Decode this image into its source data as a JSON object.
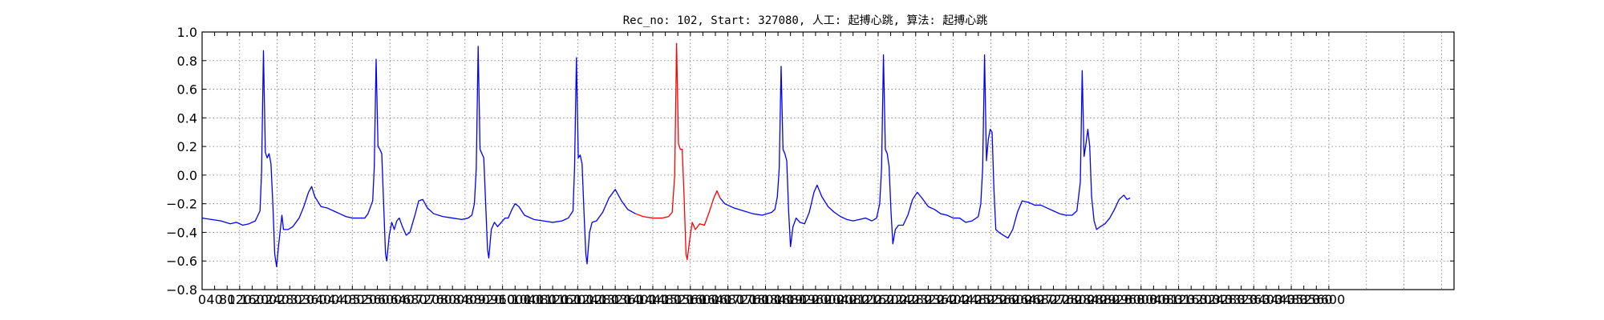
{
  "chart_data": {
    "type": "line",
    "title": "Rec_no: 102, Start: 327080, 人工: 起搏心跳, 算法: 起搏心跳",
    "xlabel": "",
    "ylabel": "",
    "xlim": [
      0,
      4000
    ],
    "ylim": [
      -0.8,
      1.0
    ],
    "grid": true,
    "yticks": [
      1.0,
      0.8,
      0.6,
      0.4,
      0.2,
      0.0,
      -0.2,
      -0.4,
      -0.6,
      -0.8
    ],
    "ytick_labels": [
      "1.0",
      "0.8",
      "0.6",
      "0.4",
      "0.2",
      "0.0",
      "−0.2",
      "−0.4",
      "−0.6",
      "−0.8"
    ],
    "xticks": [
      0,
      40,
      80,
      120,
      160,
      200,
      240,
      280,
      320,
      360,
      400,
      440,
      480,
      520,
      560,
      600,
      640,
      680,
      720,
      760,
      800,
      840,
      880,
      920,
      960,
      1000,
      1040,
      1080,
      1120,
      1160,
      1200,
      1240,
      1280,
      1320,
      1360,
      1400,
      1440,
      1480,
      1520,
      1560,
      1600,
      1640,
      1680,
      1720,
      1760,
      1800,
      1840,
      1880,
      1920,
      1960,
      2000,
      2040,
      2080,
      2120,
      2160,
      2200,
      2240,
      2280,
      2320,
      2360,
      2400,
      2440,
      2480,
      2520,
      2560,
      2600,
      2640,
      2680,
      2720,
      2760,
      2800,
      2840,
      2880,
      2920,
      2960,
      3000,
      3040,
      3080,
      3120,
      3160,
      3200,
      3240,
      3280,
      3320,
      3360,
      3400,
      3440,
      3480,
      3520,
      3560,
      3600
    ],
    "xgrid": [
      0,
      120,
      240,
      360,
      480,
      600,
      720,
      840,
      960,
      1080,
      1200,
      1320,
      1440,
      1560,
      1680,
      1800,
      1920,
      2040,
      2160,
      2280,
      2400,
      2520,
      2640,
      2760,
      2880,
      3000,
      3120,
      3240,
      3360,
      3480,
      3600,
      3720,
      3840,
      3960
    ],
    "series": [
      {
        "color": "#0000ff",
        "points": [
          [
            0,
            -0.3
          ],
          [
            30,
            -0.31
          ],
          [
            60,
            -0.32
          ],
          [
            90,
            -0.34
          ],
          [
            110,
            -0.33
          ],
          [
            130,
            -0.35
          ],
          [
            150,
            -0.34
          ],
          [
            170,
            -0.32
          ],
          [
            185,
            -0.25
          ],
          [
            190,
            0.02
          ],
          [
            196,
            0.87
          ],
          [
            202,
            0.16
          ],
          [
            208,
            0.12
          ],
          [
            214,
            0.15
          ],
          [
            220,
            0.08
          ],
          [
            226,
            -0.2
          ],
          [
            232,
            -0.55
          ],
          [
            238,
            -0.64
          ],
          [
            244,
            -0.5
          ],
          [
            250,
            -0.38
          ],
          [
            255,
            -0.28
          ],
          [
            260,
            -0.38
          ],
          [
            275,
            -0.38
          ],
          [
            290,
            -0.36
          ],
          [
            310,
            -0.3
          ],
          [
            325,
            -0.22
          ],
          [
            340,
            -0.12
          ],
          [
            350,
            -0.08
          ],
          [
            360,
            -0.15
          ],
          [
            380,
            -0.22
          ],
          [
            400,
            -0.23
          ],
          [
            420,
            -0.25
          ],
          [
            440,
            -0.27
          ],
          [
            460,
            -0.29
          ],
          [
            480,
            -0.3
          ],
          [
            500,
            -0.3
          ],
          [
            520,
            -0.3
          ],
          [
            530,
            -0.27
          ],
          [
            545,
            -0.18
          ],
          [
            550,
            0.05
          ],
          [
            556,
            0.81
          ],
          [
            562,
            0.2
          ],
          [
            568,
            0.18
          ],
          [
            574,
            0.15
          ],
          [
            580,
            -0.2
          ],
          [
            586,
            -0.55
          ],
          [
            590,
            -0.6
          ],
          [
            598,
            -0.42
          ],
          [
            606,
            -0.33
          ],
          [
            614,
            -0.38
          ],
          [
            622,
            -0.32
          ],
          [
            630,
            -0.3
          ],
          [
            640,
            -0.36
          ],
          [
            652,
            -0.42
          ],
          [
            664,
            -0.4
          ],
          [
            680,
            -0.28
          ],
          [
            692,
            -0.18
          ],
          [
            705,
            -0.17
          ],
          [
            720,
            -0.23
          ],
          [
            740,
            -0.27
          ],
          [
            770,
            -0.29
          ],
          [
            800,
            -0.3
          ],
          [
            830,
            -0.31
          ],
          [
            850,
            -0.3
          ],
          [
            862,
            -0.28
          ],
          [
            870,
            -0.2
          ],
          [
            876,
            0.05
          ],
          [
            882,
            0.9
          ],
          [
            888,
            0.18
          ],
          [
            894,
            0.15
          ],
          [
            900,
            0.12
          ],
          [
            906,
            -0.2
          ],
          [
            912,
            -0.52
          ],
          [
            916,
            -0.58
          ],
          [
            924,
            -0.38
          ],
          [
            934,
            -0.33
          ],
          [
            944,
            -0.36
          ],
          [
            956,
            -0.33
          ],
          [
            968,
            -0.3
          ],
          [
            978,
            -0.3
          ],
          [
            990,
            -0.24
          ],
          [
            1000,
            -0.2
          ],
          [
            1012,
            -0.22
          ],
          [
            1030,
            -0.28
          ],
          [
            1060,
            -0.31
          ],
          [
            1090,
            -0.32
          ],
          [
            1120,
            -0.33
          ],
          [
            1150,
            -0.32
          ],
          [
            1170,
            -0.3
          ],
          [
            1185,
            -0.25
          ],
          [
            1190,
            0.05
          ],
          [
            1196,
            0.82
          ],
          [
            1202,
            0.12
          ],
          [
            1208,
            0.14
          ],
          [
            1214,
            0.08
          ],
          [
            1220,
            -0.25
          ],
          [
            1226,
            -0.55
          ],
          [
            1230,
            -0.62
          ],
          [
            1238,
            -0.4
          ],
          [
            1246,
            -0.33
          ],
          [
            1260,
            -0.32
          ],
          [
            1280,
            -0.26
          ],
          [
            1300,
            -0.16
          ],
          [
            1320,
            -0.1
          ],
          [
            1340,
            -0.18
          ],
          [
            1360,
            -0.24
          ],
          [
            1385,
            -0.27
          ]
        ]
      },
      {
        "color": "#ff0000",
        "points": [
          [
            1385,
            -0.27
          ],
          [
            1410,
            -0.29
          ],
          [
            1440,
            -0.3
          ],
          [
            1470,
            -0.3
          ],
          [
            1490,
            -0.29
          ],
          [
            1502,
            -0.26
          ],
          [
            1510,
            0.0
          ],
          [
            1516,
            0.92
          ],
          [
            1522,
            0.22
          ],
          [
            1528,
            0.18
          ],
          [
            1534,
            0.18
          ],
          [
            1540,
            -0.15
          ],
          [
            1546,
            -0.55
          ],
          [
            1550,
            -0.59
          ],
          [
            1558,
            -0.45
          ],
          [
            1566,
            -0.33
          ],
          [
            1576,
            -0.38
          ],
          [
            1590,
            -0.34
          ],
          [
            1605,
            -0.35
          ],
          [
            1620,
            -0.26
          ],
          [
            1635,
            -0.16
          ],
          [
            1645,
            -0.11
          ],
          [
            1655,
            -0.16
          ]
        ]
      },
      {
        "color": "#0000ff",
        "points": [
          [
            1655,
            -0.16
          ],
          [
            1670,
            -0.2
          ],
          [
            1700,
            -0.23
          ],
          [
            1730,
            -0.25
          ],
          [
            1760,
            -0.27
          ],
          [
            1790,
            -0.28
          ],
          [
            1820,
            -0.26
          ],
          [
            1830,
            -0.24
          ],
          [
            1838,
            -0.15
          ],
          [
            1844,
            0.05
          ],
          [
            1850,
            0.76
          ],
          [
            1856,
            0.18
          ],
          [
            1862,
            0.15
          ],
          [
            1868,
            0.1
          ],
          [
            1874,
            -0.25
          ],
          [
            1880,
            -0.5
          ],
          [
            1888,
            -0.36
          ],
          [
            1898,
            -0.3
          ],
          [
            1910,
            -0.33
          ],
          [
            1925,
            -0.34
          ],
          [
            1940,
            -0.26
          ],
          [
            1955,
            -0.12
          ],
          [
            1965,
            -0.07
          ],
          [
            1980,
            -0.15
          ],
          [
            2000,
            -0.22
          ],
          [
            2020,
            -0.26
          ],
          [
            2040,
            -0.29
          ],
          [
            2060,
            -0.31
          ],
          [
            2080,
            -0.32
          ],
          [
            2100,
            -0.31
          ],
          [
            2120,
            -0.3
          ],
          [
            2140,
            -0.32
          ],
          [
            2155,
            -0.3
          ],
          [
            2165,
            -0.2
          ],
          [
            2171,
            0.05
          ],
          [
            2177,
            0.84
          ],
          [
            2183,
            0.18
          ],
          [
            2189,
            0.15
          ],
          [
            2195,
            0.06
          ],
          [
            2201,
            -0.25
          ],
          [
            2207,
            -0.48
          ],
          [
            2215,
            -0.38
          ],
          [
            2225,
            -0.35
          ],
          [
            2240,
            -0.35
          ],
          [
            2255,
            -0.28
          ],
          [
            2270,
            -0.17
          ],
          [
            2285,
            -0.12
          ],
          [
            2300,
            -0.16
          ],
          [
            2320,
            -0.22
          ],
          [
            2340,
            -0.24
          ],
          [
            2360,
            -0.27
          ],
          [
            2380,
            -0.28
          ],
          [
            2400,
            -0.3
          ],
          [
            2420,
            -0.3
          ],
          [
            2440,
            -0.33
          ],
          [
            2460,
            -0.32
          ],
          [
            2480,
            -0.29
          ],
          [
            2488,
            -0.2
          ],
          [
            2494,
            0.05
          ],
          [
            2500,
            0.84
          ],
          [
            2506,
            0.1
          ],
          [
            2512,
            0.25
          ],
          [
            2518,
            0.32
          ],
          [
            2524,
            0.3
          ],
          [
            2530,
            -0.1
          ],
          [
            2536,
            -0.38
          ],
          [
            2546,
            -0.4
          ],
          [
            2560,
            -0.42
          ],
          [
            2575,
            -0.44
          ],
          [
            2590,
            -0.38
          ],
          [
            2605,
            -0.26
          ],
          [
            2620,
            -0.18
          ],
          [
            2640,
            -0.19
          ],
          [
            2660,
            -0.21
          ],
          [
            2680,
            -0.21
          ],
          [
            2700,
            -0.23
          ],
          [
            2720,
            -0.25
          ],
          [
            2740,
            -0.27
          ],
          [
            2760,
            -0.28
          ],
          [
            2780,
            -0.28
          ],
          [
            2795,
            -0.25
          ],
          [
            2806,
            -0.05
          ],
          [
            2812,
            0.73
          ],
          [
            2818,
            0.13
          ],
          [
            2824,
            0.22
          ],
          [
            2830,
            0.32
          ],
          [
            2836,
            0.2
          ],
          [
            2842,
            -0.15
          ],
          [
            2850,
            -0.32
          ],
          [
            2858,
            -0.38
          ],
          [
            2870,
            -0.36
          ],
          [
            2885,
            -0.34
          ],
          [
            2900,
            -0.3
          ],
          [
            2915,
            -0.24
          ],
          [
            2930,
            -0.17
          ],
          [
            2945,
            -0.14
          ],
          [
            2955,
            -0.17
          ],
          [
            2965,
            -0.16
          ]
        ]
      }
    ]
  }
}
